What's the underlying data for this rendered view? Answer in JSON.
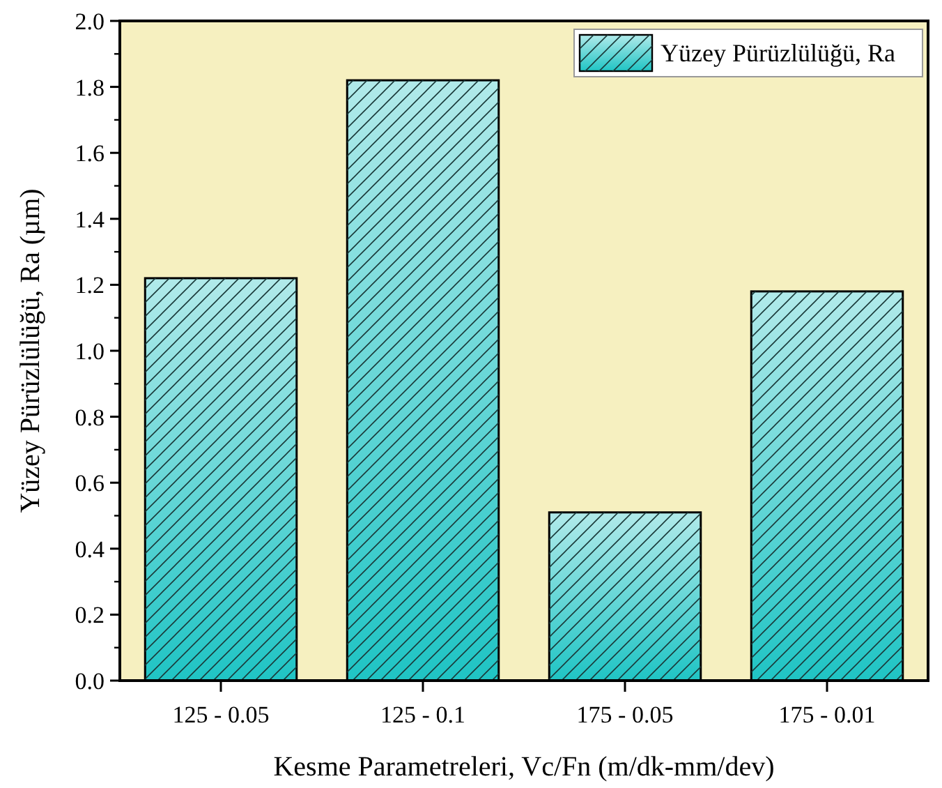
{
  "chart_data": {
    "type": "bar",
    "xlabel": "Kesme Parametreleri, Vc/Fn (m/dk-mm/dev)",
    "ylabel": "Yüzey Pürüzlülüğü, Ra (µm)",
    "categories": [
      "125 - 0.05",
      "125 - 0.1",
      "175 - 0.05",
      "175 - 0.01"
    ],
    "series": [
      {
        "name": "Yüzey Pürüzlülüğü, Ra",
        "color": "#1fc4c4",
        "values": [
          1.22,
          1.82,
          0.51,
          1.18
        ]
      }
    ],
    "ylim": [
      0,
      2.0
    ],
    "yticks": [
      {
        "value": 0,
        "label": "0.0"
      },
      {
        "value": 0.2,
        "label": "0.2"
      },
      {
        "value": 0.4,
        "label": "0.4"
      },
      {
        "value": 0.6,
        "label": "0.6"
      },
      {
        "value": 0.8,
        "label": "0.8"
      },
      {
        "value": 1,
        "label": "1.0"
      },
      {
        "value": 1.2,
        "label": "1.2"
      },
      {
        "value": 1.4,
        "label": "1.4"
      },
      {
        "value": 1.6,
        "label": "1.6"
      },
      {
        "value": 1.8,
        "label": "1.8"
      },
      {
        "value": 2,
        "label": "2.0"
      }
    ],
    "legend": "top right",
    "grid": false
  }
}
